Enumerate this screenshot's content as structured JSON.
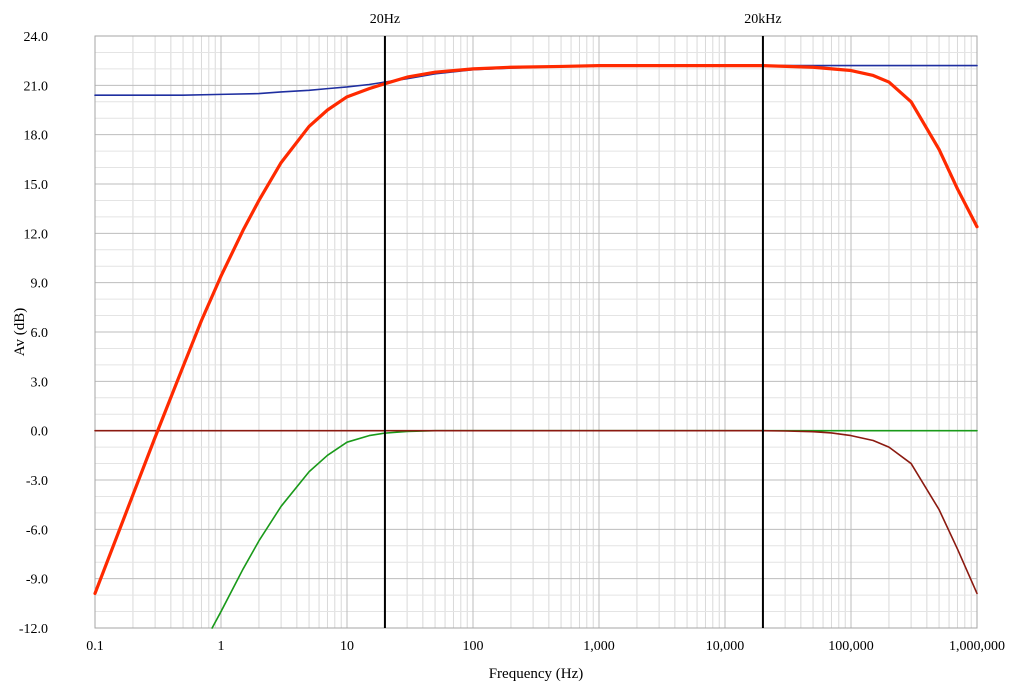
{
  "chart_data": {
    "type": "line",
    "xlabel": "Frequency (Hz)",
    "ylabel": "Av (dB)",
    "x_scale": "log",
    "xlim": [
      0.1,
      1000000
    ],
    "ylim": [
      -12,
      24
    ],
    "grid": true,
    "x_ticks": [
      {
        "value": 0.1,
        "label": "0.1"
      },
      {
        "value": 1,
        "label": "1"
      },
      {
        "value": 10,
        "label": "10"
      },
      {
        "value": 100,
        "label": "100"
      },
      {
        "value": 1000,
        "label": "1,000"
      },
      {
        "value": 10000,
        "label": "10,000"
      },
      {
        "value": 100000,
        "label": "100,000"
      },
      {
        "value": 1000000,
        "label": "1,000,000"
      }
    ],
    "y_ticks": [
      {
        "value": 24,
        "label": "24.0"
      },
      {
        "value": 21,
        "label": "21.0"
      },
      {
        "value": 18,
        "label": "18.0"
      },
      {
        "value": 15,
        "label": "15.0"
      },
      {
        "value": 12,
        "label": "12.0"
      },
      {
        "value": 9,
        "label": "9.0"
      },
      {
        "value": 6,
        "label": "6.0"
      },
      {
        "value": 3,
        "label": "3.0"
      },
      {
        "value": 0,
        "label": "0.0"
      },
      {
        "value": -3,
        "label": "-3.0"
      },
      {
        "value": -6,
        "label": "-6.0"
      },
      {
        "value": -9,
        "label": "-9.0"
      },
      {
        "value": -12,
        "label": "-12.0"
      }
    ],
    "markers": [
      {
        "x": 20,
        "label": "20Hz"
      },
      {
        "x": 20000,
        "label": "20kHz"
      }
    ],
    "series": [
      {
        "color": "#ff2a00",
        "points": [
          [
            0.1,
            -9.9
          ],
          [
            0.2,
            -3.9
          ],
          [
            0.3,
            -0.4
          ],
          [
            0.5,
            3.9
          ],
          [
            0.7,
            6.7
          ],
          [
            1,
            9.4
          ],
          [
            1.5,
            12.2
          ],
          [
            2,
            14.0
          ],
          [
            3,
            16.3
          ],
          [
            5,
            18.5
          ],
          [
            7,
            19.5
          ],
          [
            10,
            20.3
          ],
          [
            15,
            20.8
          ],
          [
            20,
            21.1
          ],
          [
            30,
            21.5
          ],
          [
            50,
            21.8
          ],
          [
            100,
            22.0
          ],
          [
            200,
            22.1
          ],
          [
            500,
            22.15
          ],
          [
            1000,
            22.2
          ],
          [
            5000,
            22.2
          ],
          [
            10000,
            22.2
          ],
          [
            20000,
            22.2
          ],
          [
            50000,
            22.1
          ],
          [
            100000,
            21.9
          ],
          [
            150000,
            21.6
          ],
          [
            200000,
            21.2
          ],
          [
            300000,
            20.0
          ],
          [
            500000,
            17.1
          ],
          [
            700000,
            14.7
          ],
          [
            1000000,
            12.4
          ]
        ]
      },
      {
        "color": "#1f2fa0",
        "points": [
          [
            0.1,
            20.4
          ],
          [
            0.5,
            20.4
          ],
          [
            1,
            20.45
          ],
          [
            2,
            20.5
          ],
          [
            3,
            20.6
          ],
          [
            5,
            20.7
          ],
          [
            7,
            20.8
          ],
          [
            10,
            20.9
          ],
          [
            15,
            21.05
          ],
          [
            20,
            21.2
          ],
          [
            30,
            21.4
          ],
          [
            50,
            21.7
          ],
          [
            100,
            21.95
          ],
          [
            200,
            22.05
          ],
          [
            500,
            22.15
          ],
          [
            1000,
            22.2
          ],
          [
            10000,
            22.2
          ],
          [
            100000,
            22.2
          ],
          [
            1000000,
            22.2
          ]
        ]
      },
      {
        "color": "#1a9a1a",
        "points": [
          [
            0.85,
            -12
          ],
          [
            1,
            -11.0
          ],
          [
            1.5,
            -8.4
          ],
          [
            2,
            -6.7
          ],
          [
            3,
            -4.6
          ],
          [
            5,
            -2.5
          ],
          [
            7,
            -1.5
          ],
          [
            10,
            -0.7
          ],
          [
            15,
            -0.3
          ],
          [
            20,
            -0.15
          ],
          [
            30,
            -0.05
          ],
          [
            50,
            0
          ],
          [
            100,
            0
          ],
          [
            1000,
            0
          ],
          [
            100000,
            0
          ],
          [
            1000000,
            0
          ]
        ]
      },
      {
        "color": "#8b1a10",
        "points": [
          [
            0.1,
            0
          ],
          [
            1000,
            0
          ],
          [
            10000,
            0
          ],
          [
            20000,
            0
          ],
          [
            30000,
            -0.02
          ],
          [
            50000,
            -0.06
          ],
          [
            70000,
            -0.14
          ],
          [
            100000,
            -0.3
          ],
          [
            150000,
            -0.6
          ],
          [
            200000,
            -1.0
          ],
          [
            300000,
            -2.0
          ],
          [
            500000,
            -4.8
          ],
          [
            700000,
            -7.2
          ],
          [
            1000000,
            -9.9
          ]
        ]
      }
    ]
  }
}
